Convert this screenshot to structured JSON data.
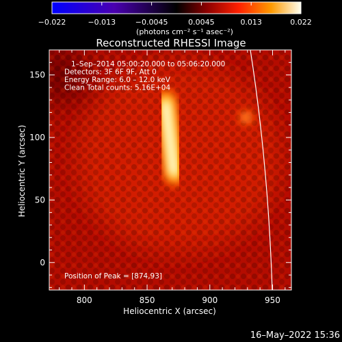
{
  "colorbar": {
    "ticks": [
      "−0.022",
      "−0.013",
      "−0.0045",
      "0.0045",
      "0.013",
      "0.022"
    ],
    "unit_label": "(photons cm⁻² s⁻¹ asec⁻²)",
    "min": -0.022,
    "max": 0.022
  },
  "timestamp": "16–May–2022 15:36",
  "chart_data": {
    "type": "heatmap",
    "title": "Reconstructed RHESSI Image",
    "xlabel": "Heliocentric X (arcsec)",
    "ylabel": "Heliocentric Y (arcsec)",
    "xlim": [
      772,
      965
    ],
    "ylim": [
      -22,
      170
    ],
    "xticks": [
      800,
      850,
      900,
      950
    ],
    "yticks": [
      0,
      50,
      100,
      150
    ],
    "annotations": [
      "1–Sep–2014 05:00:20.000 to 05:06:20.000",
      "Detectors: 3F 6F 9F, Att 0",
      "Energy Range: 6.0 – 12.0 keV",
      "Clean     Total counts: 5.16E+04"
    ],
    "peak_label": "Position of Peak = [874,93]",
    "sources": [
      {
        "x": 865,
        "y": 118,
        "value": 0.022
      },
      {
        "x": 872,
        "y": 75,
        "value": 0.019
      },
      {
        "x": 929,
        "y": 116,
        "value": 0.012
      }
    ],
    "background_level": 0.006
  }
}
